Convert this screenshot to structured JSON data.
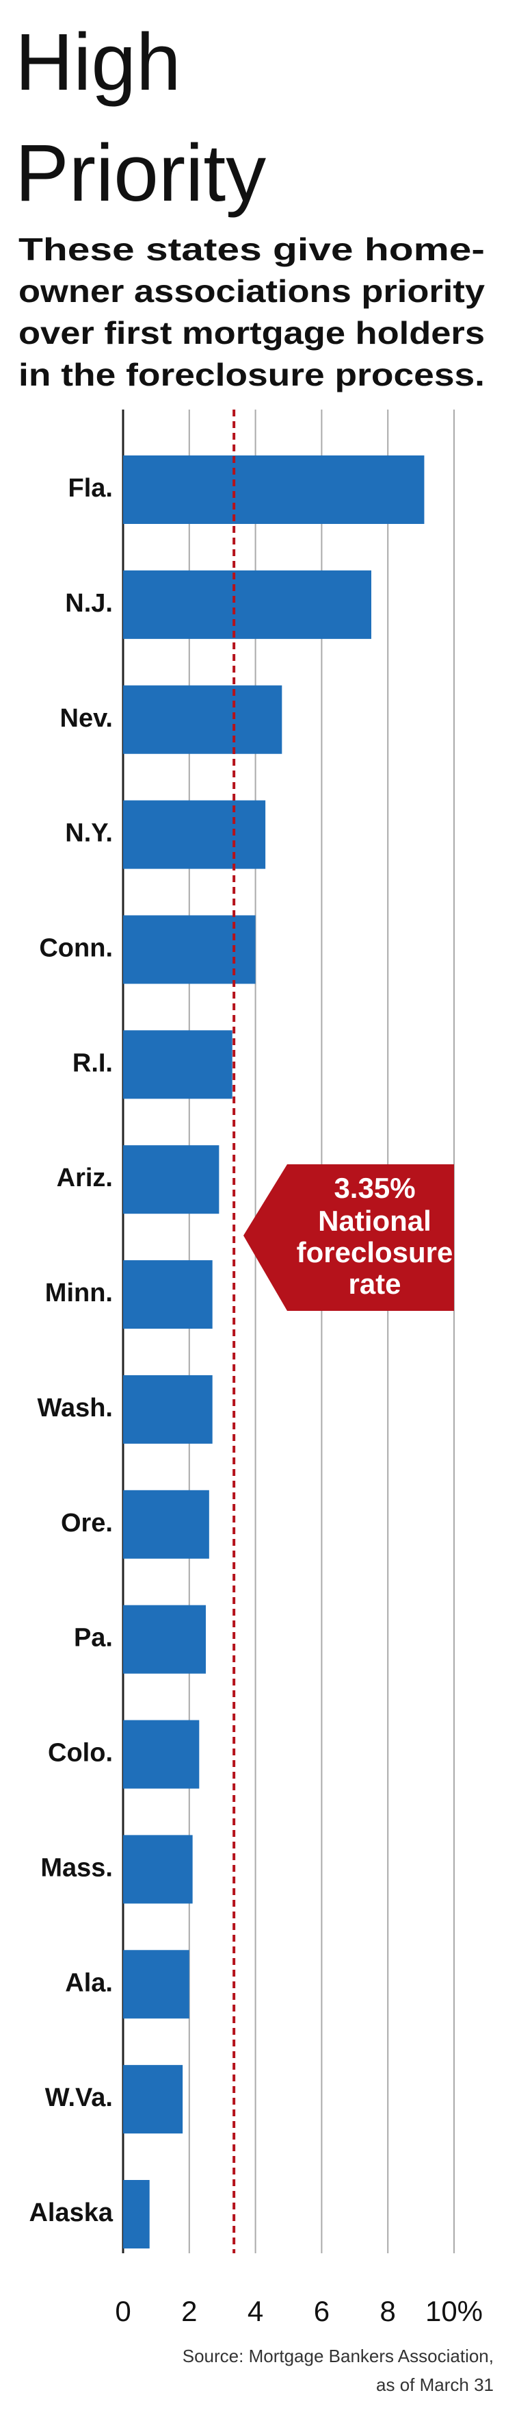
{
  "chart_data": {
    "type": "bar",
    "orientation": "horizontal",
    "title": [
      "High",
      "Priority"
    ],
    "subtitle": [
      "These states give home-",
      "owner associations priority",
      "over first mortgage holders",
      "in the foreclosure process."
    ],
    "categories": [
      "Fla.",
      "N.J.",
      "Nev.",
      "N.Y.",
      "Conn.",
      "R.I.",
      "Ariz.",
      "Minn.",
      "Wash.",
      "Ore.",
      "Pa.",
      "Colo.",
      "Mass.",
      "Ala.",
      "W.Va.",
      "Alaska"
    ],
    "values": [
      9.1,
      7.5,
      4.8,
      4.3,
      4.0,
      3.3,
      2.9,
      2.7,
      2.7,
      2.6,
      2.5,
      2.3,
      2.1,
      2.0,
      1.8,
      0.8
    ],
    "color": "#1f6fba",
    "xlim": [
      0,
      10
    ],
    "xticks": [
      0,
      2,
      4,
      6,
      8,
      {
        "value": 10,
        "label": "10%"
      }
    ],
    "grid": true,
    "reference": {
      "value": 3.35,
      "label": "3.35%",
      "text": [
        "National",
        "foreclosure",
        "rate"
      ],
      "color": "#b5121b"
    },
    "source": [
      "Source: Mortgage Bankers Association,",
      "as of March 31"
    ]
  }
}
